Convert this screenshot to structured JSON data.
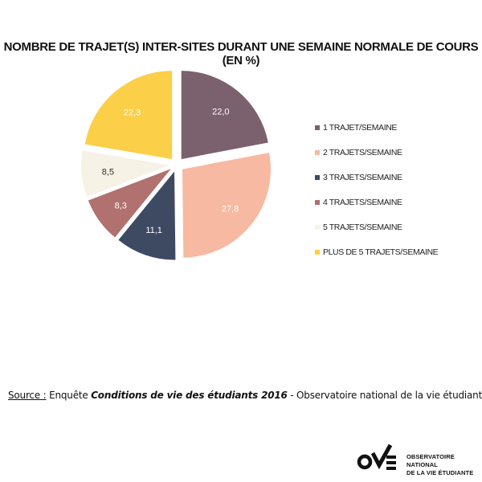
{
  "chart_data": {
    "type": "pie",
    "title": "NOMBRE DE TRAJET(S) INTER-SITES DURANT UNE SEMAINE NORMALE DE COURS (EN %)",
    "slices": [
      {
        "label": "1 TRAJET/SEMAINE",
        "value": 22.0,
        "display": "22,0",
        "color": "#7b616d",
        "text_color": "#ffffff"
      },
      {
        "label": "2 TRAJETS/SEMAINE",
        "value": 27.8,
        "display": "27,8",
        "color": "#f7b9a1",
        "text_color": "#ffffff"
      },
      {
        "label": "3 TRAJETS/SEMAINE",
        "value": 11.1,
        "display": "11,1",
        "color": "#3e4a61",
        "text_color": "#ffffff"
      },
      {
        "label": "4 TRAJETS/SEMAINE",
        "value": 8.3,
        "display": "8,3",
        "color": "#b0716f",
        "text_color": "#ffffff"
      },
      {
        "label": "5 TRAJETS/SEMAINE",
        "value": 8.5,
        "display": "8,5",
        "color": "#f6f2e6",
        "text_color": "#333333"
      },
      {
        "label": "PLUS DE 5 TRAJETS/SEMAINE",
        "value": 22.3,
        "display": "22,3",
        "color": "#fbcf47",
        "text_color": "#ffffff"
      }
    ],
    "legend_position": "right"
  },
  "source": {
    "prefix": "Source :",
    "middle": " Enquête ",
    "bold": "Conditions de vie des étudiants 2016",
    "suffix": " - Observatoire national de la vie étudiante"
  },
  "logo": {
    "line1": "OBSERVATOIRE NATIONAL",
    "line2": "DE LA VIE ÉTUDIANTE"
  }
}
